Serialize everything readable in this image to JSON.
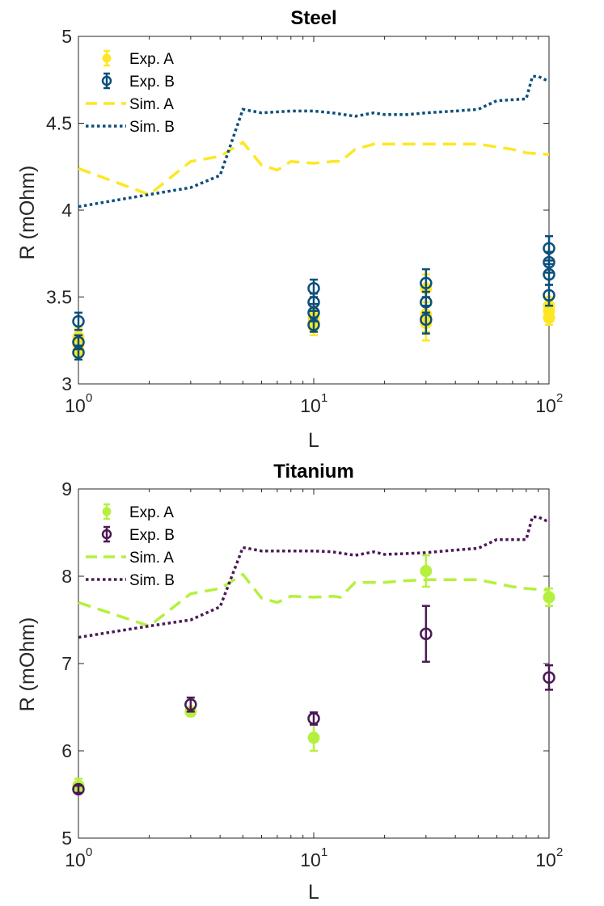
{
  "chart_data": [
    {
      "type": "scatter",
      "title": "Steel",
      "xlabel": "L",
      "ylabel": "R (mOhm)",
      "xscale": "log",
      "xlim": [
        1,
        100
      ],
      "ylim": [
        3,
        5
      ],
      "yticks": [
        "3",
        "3.5",
        "4",
        "4.5",
        "5"
      ],
      "xticks": [
        {
          "base": "10",
          "exp": "0"
        },
        {
          "base": "10",
          "exp": "1"
        },
        {
          "base": "10",
          "exp": "2"
        }
      ],
      "legend_position": "top-left",
      "colors": {
        "A": "#FDE725",
        "B": "#0D4F7A"
      },
      "series": [
        {
          "name": "Exp. A",
          "kind": "points",
          "filled": true,
          "points": [
            {
              "x": 1,
              "y": 3.27,
              "err": 0.05
            },
            {
              "x": 1,
              "y": 3.19,
              "err": 0.05
            },
            {
              "x": 1,
              "y": 3.23,
              "err": 0.05
            },
            {
              "x": 10,
              "y": 3.33,
              "err": 0.05
            },
            {
              "x": 10,
              "y": 3.36,
              "err": 0.05
            },
            {
              "x": 10,
              "y": 3.38,
              "err": 0.05
            },
            {
              "x": 30,
              "y": 3.35,
              "err": 0.1
            },
            {
              "x": 30,
              "y": 3.4,
              "err": 0.1
            },
            {
              "x": 30,
              "y": 3.55,
              "err": 0.08
            },
            {
              "x": 100,
              "y": 3.38,
              "err": 0.04
            },
            {
              "x": 100,
              "y": 3.42,
              "err": 0.04
            },
            {
              "x": 100,
              "y": 3.45,
              "err": 0.05
            }
          ]
        },
        {
          "name": "Exp. B",
          "kind": "points",
          "filled": false,
          "points": [
            {
              "x": 1,
              "y": 3.36,
              "err": 0.05
            },
            {
              "x": 1,
              "y": 3.24,
              "err": 0.04
            },
            {
              "x": 1,
              "y": 3.18,
              "err": 0.04
            },
            {
              "x": 10,
              "y": 3.55,
              "err": 0.05
            },
            {
              "x": 10,
              "y": 3.47,
              "err": 0.05
            },
            {
              "x": 10,
              "y": 3.41,
              "err": 0.05
            },
            {
              "x": 10,
              "y": 3.34,
              "err": 0.04
            },
            {
              "x": 30,
              "y": 3.58,
              "err": 0.08
            },
            {
              "x": 30,
              "y": 3.47,
              "err": 0.06
            },
            {
              "x": 30,
              "y": 3.37,
              "err": 0.08
            },
            {
              "x": 100,
              "y": 3.78,
              "err": 0.07
            },
            {
              "x": 100,
              "y": 3.7,
              "err": 0.06
            },
            {
              "x": 100,
              "y": 3.63,
              "err": 0.06
            },
            {
              "x": 100,
              "y": 3.51,
              "err": 0.06
            }
          ]
        },
        {
          "name": "Sim. A",
          "kind": "line",
          "dash": "dashed",
          "x": [
            1,
            2,
            3,
            4,
            5,
            6,
            7,
            8,
            10,
            12,
            13,
            15,
            18,
            20,
            25,
            30,
            40,
            50,
            70,
            80,
            100
          ],
          "y": [
            4.24,
            4.09,
            4.28,
            4.31,
            4.39,
            4.26,
            4.23,
            4.28,
            4.27,
            4.28,
            4.28,
            4.35,
            4.38,
            4.38,
            4.38,
            4.38,
            4.38,
            4.38,
            4.35,
            4.33,
            4.32
          ]
        },
        {
          "name": "Sim. B",
          "kind": "line",
          "dash": "dotted",
          "x": [
            1,
            2,
            3,
            4,
            5,
            6,
            8,
            10,
            12,
            15,
            18,
            20,
            25,
            30,
            40,
            50,
            60,
            80,
            85,
            90,
            100
          ],
          "y": [
            4.02,
            4.09,
            4.13,
            4.2,
            4.58,
            4.56,
            4.57,
            4.57,
            4.56,
            4.54,
            4.56,
            4.55,
            4.55,
            4.56,
            4.57,
            4.58,
            4.63,
            4.64,
            4.77,
            4.77,
            4.74
          ]
        }
      ]
    },
    {
      "type": "scatter",
      "title": "Titanium",
      "xlabel": "L",
      "ylabel": "R (mOhm)",
      "xscale": "log",
      "xlim": [
        1,
        100
      ],
      "ylim": [
        5,
        9
      ],
      "yticks": [
        "5",
        "6",
        "7",
        "8",
        "9"
      ],
      "xticks": [
        {
          "base": "10",
          "exp": "0"
        },
        {
          "base": "10",
          "exp": "1"
        },
        {
          "base": "10",
          "exp": "2"
        }
      ],
      "legend_position": "top-left",
      "colors": {
        "A": "#B5F03F",
        "B": "#4B1A55"
      },
      "series": [
        {
          "name": "Exp. A",
          "kind": "points",
          "filled": true,
          "points": [
            {
              "x": 1,
              "y": 5.6,
              "err": 0.08
            },
            {
              "x": 3,
              "y": 6.45,
              "err": 0.05
            },
            {
              "x": 10,
              "y": 6.15,
              "err": 0.15
            },
            {
              "x": 30,
              "y": 8.06,
              "err": 0.18
            },
            {
              "x": 100,
              "y": 7.76,
              "err": 0.1
            }
          ]
        },
        {
          "name": "Exp. B",
          "kind": "points",
          "filled": false,
          "points": [
            {
              "x": 1,
              "y": 5.56,
              "err": 0.04
            },
            {
              "x": 3,
              "y": 6.53,
              "err": 0.08
            },
            {
              "x": 10,
              "y": 6.37,
              "err": 0.07
            },
            {
              "x": 30,
              "y": 7.34,
              "err": 0.32
            },
            {
              "x": 100,
              "y": 6.84,
              "err": 0.14
            }
          ]
        },
        {
          "name": "Sim. A",
          "kind": "line",
          "dash": "dashed",
          "x": [
            1,
            2,
            3,
            4,
            5,
            6,
            7,
            8,
            10,
            12,
            13,
            15,
            18,
            20,
            25,
            30,
            40,
            50,
            70,
            80,
            100
          ],
          "y": [
            7.7,
            7.43,
            7.8,
            7.86,
            8.02,
            7.75,
            7.7,
            7.77,
            7.76,
            7.77,
            7.76,
            7.93,
            7.93,
            7.93,
            7.95,
            7.96,
            7.96,
            7.96,
            7.88,
            7.86,
            7.84
          ]
        },
        {
          "name": "Sim. B",
          "kind": "line",
          "dash": "dotted",
          "x": [
            1,
            2,
            3,
            4,
            5,
            6,
            8,
            10,
            12,
            15,
            18,
            20,
            25,
            30,
            40,
            50,
            60,
            80,
            85,
            90,
            100
          ],
          "y": [
            7.3,
            7.43,
            7.5,
            7.65,
            8.33,
            8.29,
            8.29,
            8.29,
            8.28,
            8.24,
            8.28,
            8.25,
            8.26,
            8.27,
            8.3,
            8.32,
            8.42,
            8.42,
            8.68,
            8.68,
            8.62
          ]
        }
      ]
    }
  ]
}
